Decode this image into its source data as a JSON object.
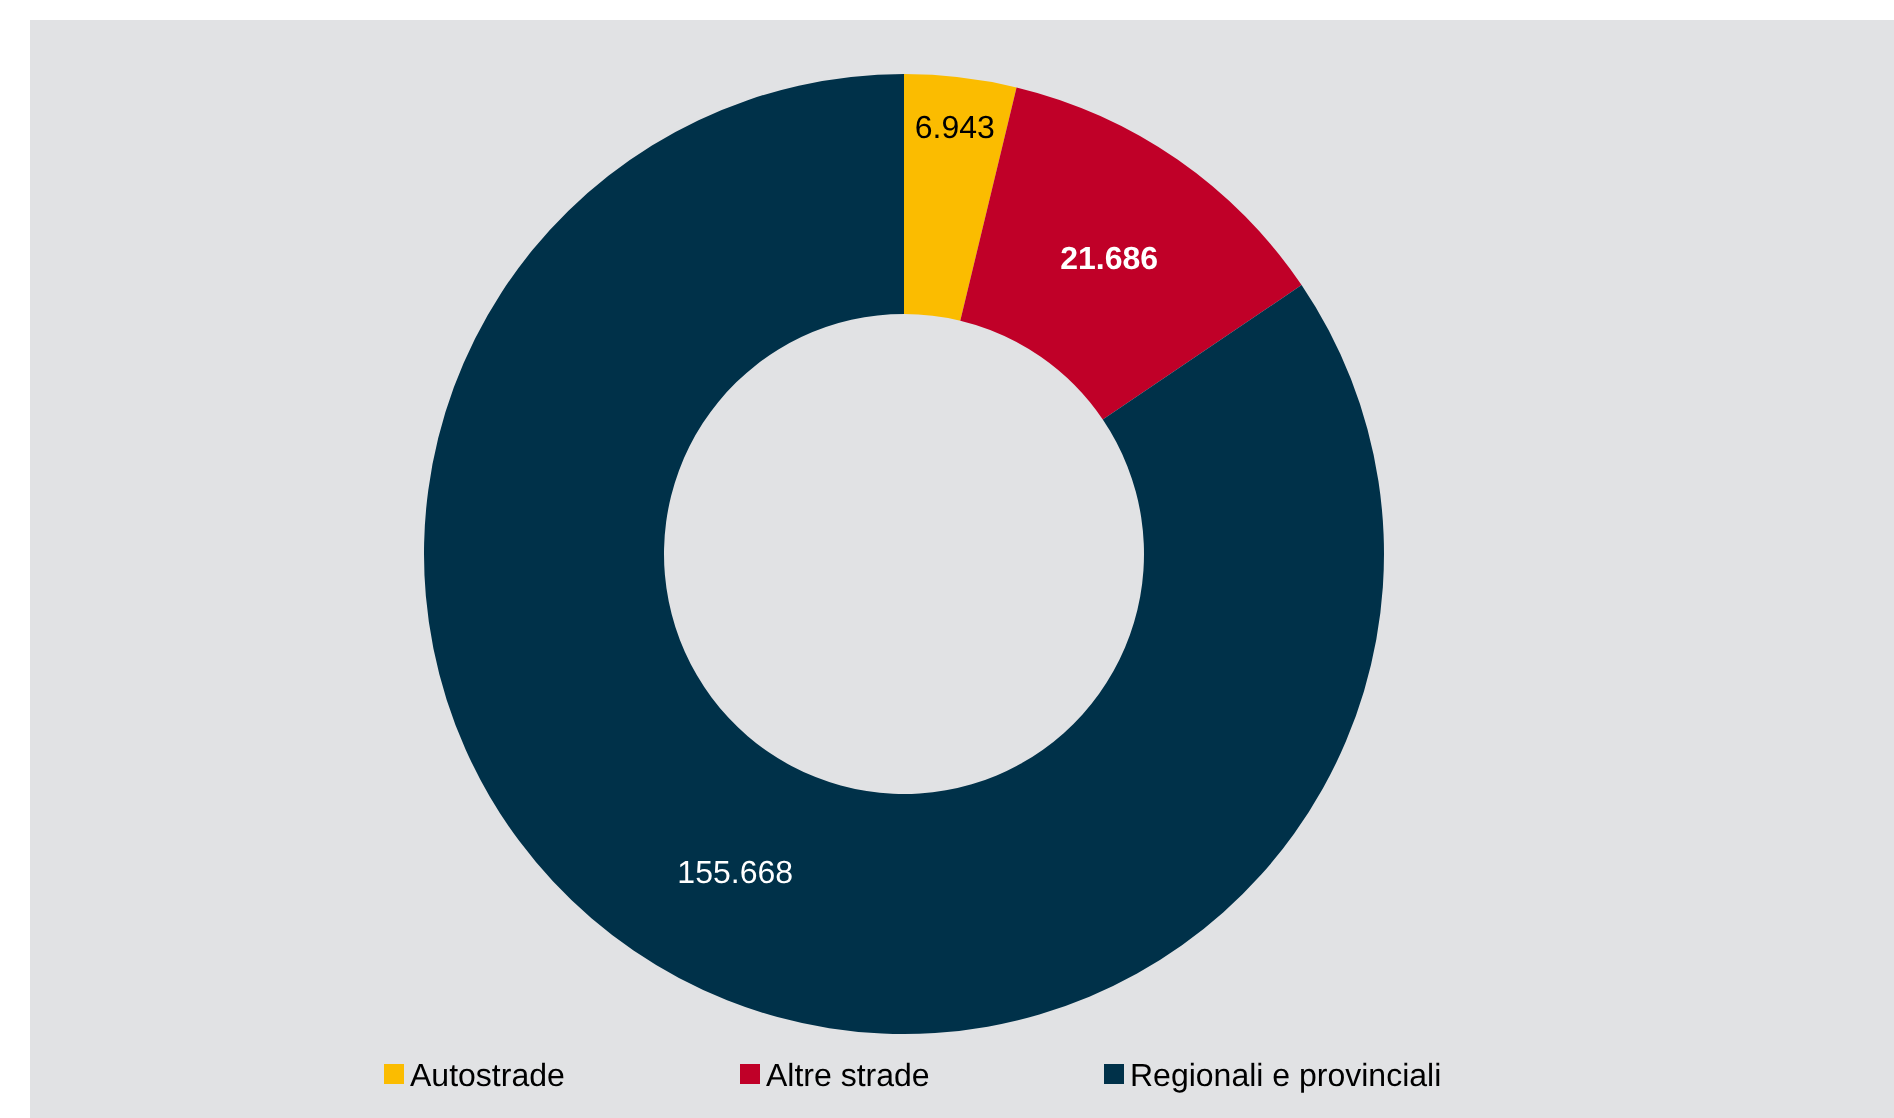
{
  "chart_data": {
    "type": "donut",
    "categories": [
      "Autostrade",
      "Altre strade",
      "Regionali e provinciali"
    ],
    "values": [
      6943,
      21686,
      155668
    ],
    "value_labels": [
      "6.943",
      "21.686",
      "155.668"
    ],
    "colors": [
      "#fbbc00",
      "#c00028",
      "#003149"
    ],
    "legend": "bottom"
  }
}
